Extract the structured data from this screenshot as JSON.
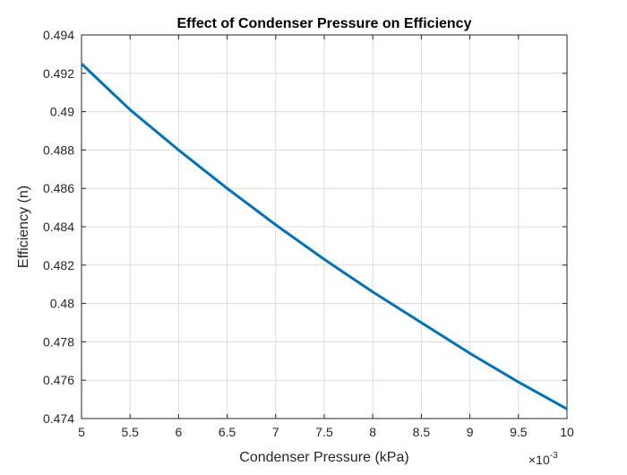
{
  "chart_data": {
    "type": "line",
    "title": "Effect of Condenser Pressure on Efficiency",
    "xlabel": "Condenser Pressure (kPa)",
    "ylabel": "Efficiency (n)",
    "x_exponent_label": "×10",
    "x_exponent_power": "-3",
    "xlim": [
      0.005,
      0.01
    ],
    "ylim": [
      0.474,
      0.494
    ],
    "x_ticks": [
      0.005,
      0.0055,
      0.006,
      0.0065,
      0.007,
      0.0075,
      0.008,
      0.0085,
      0.009,
      0.0095,
      0.01
    ],
    "x_tick_labels": [
      "5",
      "5.5",
      "6",
      "6.5",
      "7",
      "7.5",
      "8",
      "8.5",
      "9",
      "9.5",
      "10"
    ],
    "y_ticks": [
      0.474,
      0.476,
      0.478,
      0.48,
      0.482,
      0.484,
      0.486,
      0.488,
      0.49,
      0.492,
      0.494
    ],
    "y_tick_labels": [
      "0.474",
      "0.476",
      "0.478",
      "0.48",
      "0.482",
      "0.484",
      "0.486",
      "0.488",
      "0.49",
      "0.492",
      "0.494"
    ],
    "grid": true,
    "series": [
      {
        "color": "#0072BD",
        "x": [
          0.005,
          0.0055,
          0.006,
          0.0065,
          0.007,
          0.0075,
          0.008,
          0.0085,
          0.009,
          0.0095,
          0.01
        ],
        "values": [
          0.4925,
          0.4901,
          0.488,
          0.486,
          0.4841,
          0.4823,
          0.4806,
          0.479,
          0.4774,
          0.4759,
          0.4745
        ]
      }
    ]
  }
}
